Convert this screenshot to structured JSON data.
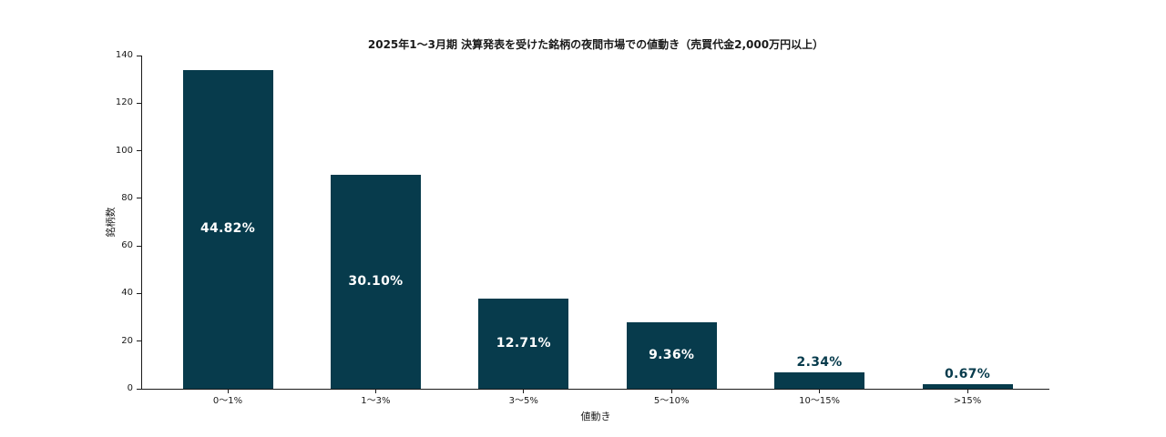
{
  "chart_data": {
    "type": "bar",
    "title": "2025年1～3月期 決算発表を受けた銘柄の夜間市場での値動き（売買代金2,000万円以上）",
    "xlabel": "値動き",
    "ylabel": "銘柄数",
    "categories": [
      "0～1%",
      "1～3%",
      "3～5%",
      "5～10%",
      "10～15%",
      ">15%"
    ],
    "values": [
      134,
      90,
      38,
      28,
      7,
      2
    ],
    "bar_labels": [
      "44.82%",
      "30.10%",
      "12.71%",
      "9.36%",
      "2.34%",
      "0.67%"
    ],
    "ylim": [
      0,
      140
    ],
    "yticks": [
      0,
      20,
      40,
      60,
      80,
      100,
      120,
      140
    ],
    "grid": false,
    "legend": "none",
    "colors": {
      "bar": "#073B4C",
      "label_inside": "#FFFFFF",
      "label_outside": "#073B4C",
      "axis": "#1A1A1A",
      "background": "#FFFFFF"
    }
  }
}
